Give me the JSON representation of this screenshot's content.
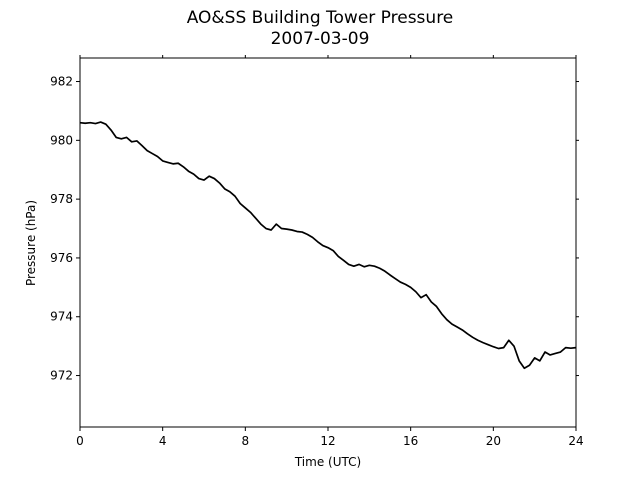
{
  "chart_data": {
    "type": "line",
    "title": "AO&SS Building Tower Pressure",
    "subtitle": "2007-03-09",
    "xlabel": "Time (UTC)",
    "ylabel": "Pressure (hPa)",
    "xlim": [
      0,
      24
    ],
    "ylim": [
      970.25,
      982.8
    ],
    "xticks": [
      0,
      4,
      8,
      12,
      16,
      20,
      24
    ],
    "yticks": [
      972,
      974,
      976,
      978,
      980,
      982
    ],
    "grid": false,
    "line_color": "#000000",
    "series": [
      {
        "x": [
          0,
          0.25,
          0.5,
          0.75,
          1,
          1.25,
          1.5,
          1.75,
          2,
          2.25,
          2.5,
          2.75,
          3,
          3.25,
          3.5,
          3.75,
          4,
          4.25,
          4.5,
          4.75,
          5,
          5.25,
          5.5,
          5.75,
          6,
          6.25,
          6.5,
          6.75,
          7,
          7.25,
          7.5,
          7.75,
          8,
          8.25,
          8.5,
          8.75,
          9,
          9.25,
          9.5,
          9.75,
          10,
          10.25,
          10.5,
          10.75,
          11,
          11.25,
          11.5,
          11.75,
          12,
          12.25,
          12.5,
          12.75,
          13,
          13.25,
          13.5,
          13.75,
          14,
          14.25,
          14.5,
          14.75,
          15,
          15.25,
          15.5,
          15.75,
          16,
          16.25,
          16.5,
          16.75,
          17,
          17.25,
          17.5,
          17.75,
          18,
          18.25,
          18.5,
          18.75,
          19,
          19.25,
          19.5,
          19.75,
          20,
          20.25,
          20.5,
          20.75,
          21,
          21.25,
          21.5,
          21.75,
          22,
          22.25,
          22.5,
          22.75,
          23,
          23.25,
          23.5,
          23.75,
          24
        ],
        "y": [
          980.6,
          980.58,
          980.6,
          980.57,
          980.62,
          980.55,
          980.35,
          980.1,
          980.05,
          980.1,
          979.95,
          979.98,
          979.82,
          979.65,
          979.55,
          979.45,
          979.3,
          979.25,
          979.2,
          979.22,
          979.1,
          978.95,
          978.85,
          978.7,
          978.65,
          978.78,
          978.7,
          978.55,
          978.35,
          978.25,
          978.1,
          977.85,
          977.7,
          977.55,
          977.35,
          977.15,
          977.0,
          976.95,
          977.15,
          977.0,
          976.98,
          976.95,
          976.9,
          976.88,
          976.8,
          976.7,
          976.55,
          976.42,
          976.35,
          976.25,
          976.05,
          975.92,
          975.78,
          975.72,
          975.78,
          975.7,
          975.75,
          975.72,
          975.65,
          975.55,
          975.42,
          975.3,
          975.18,
          975.1,
          975.0,
          974.85,
          974.65,
          974.75,
          974.5,
          974.35,
          974.1,
          973.9,
          973.75,
          973.65,
          973.55,
          973.42,
          973.3,
          973.2,
          973.12,
          973.05,
          972.98,
          972.92,
          972.95,
          973.2,
          973.0,
          972.5,
          972.25,
          972.35,
          972.6,
          972.5,
          972.8,
          972.7,
          972.75,
          972.8,
          972.95,
          972.93,
          972.95
        ]
      }
    ]
  }
}
